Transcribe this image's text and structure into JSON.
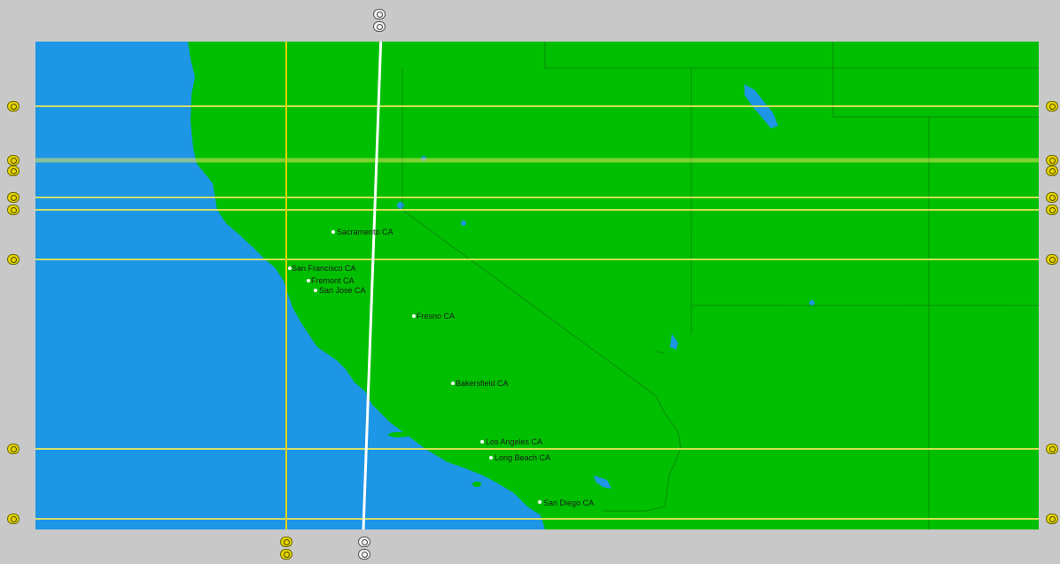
{
  "map": {
    "colors": {
      "land": "#00bf00",
      "water": "#1e96e6",
      "grid_line": "#e6e65a",
      "meridian_white": "#ffffff",
      "meridian_yellow": "#e6d200",
      "border": "#0a7a0a",
      "frame": "#c8c8c8"
    },
    "cities": [
      {
        "name": "Sacramento CA"
      },
      {
        "name": "San Francisco CA"
      },
      {
        "name": "Fremont CA"
      },
      {
        "name": "San Jose CA"
      },
      {
        "name": "Fresno CA"
      },
      {
        "name": "Bakersfield CA"
      },
      {
        "name": "Los Angeles CA"
      },
      {
        "name": "Long Beach CA"
      },
      {
        "name": "San Diego CA"
      }
    ],
    "handle_icons": [
      "yellow-line-handle-icon",
      "white-line-handle-icon"
    ]
  }
}
